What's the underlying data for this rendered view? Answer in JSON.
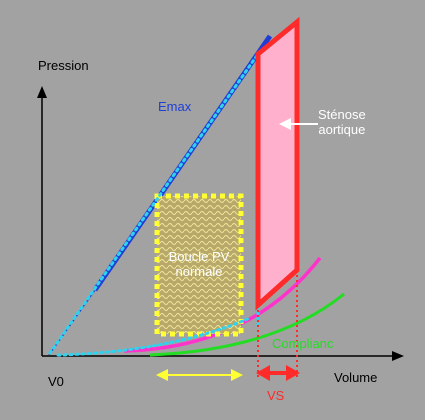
{
  "labels": {
    "pression": "Pression",
    "volume": "Volume",
    "v0": "V0",
    "emax": "Emax",
    "stenose": [
      "Sténose",
      "aortique"
    ],
    "boucle": [
      "Boucle PV",
      "normale"
    ],
    "compliance": "Complianc",
    "vs": "VS"
  },
  "colors": {
    "background": "#a2a2a2",
    "axis": "#000000",
    "emax": "#1f3ed6",
    "dotted_cyan": "#2fd3f0",
    "normal_loop_border": "#ffff33",
    "normal_loop_fill": "#b8a86a",
    "stenosis_loop": "#ff2a2a",
    "stenosis_fill": "#ffb0cc",
    "compliance": "#22dd22",
    "pink_curve": "#ff33cc",
    "vs_arrow": "#ff2a2a",
    "yellow_arrow": "#ffff33",
    "stenose_text": "#ffffff",
    "emax_text": "#1f3ed6",
    "compliance_text": "#22dd22",
    "vs_text": "#ff2a2a"
  }
}
